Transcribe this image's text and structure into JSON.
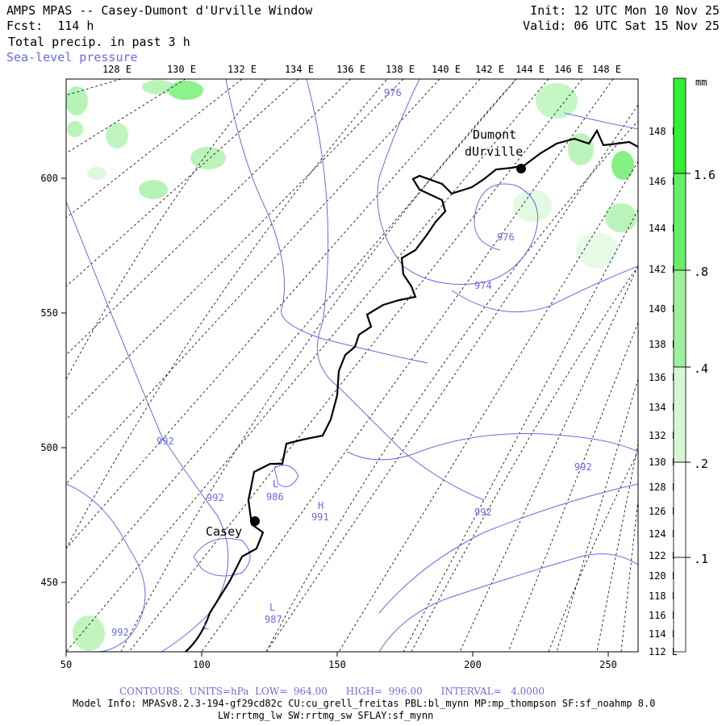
{
  "header": {
    "title": "AMPS MPAS -- Casey-Dumont d'Urville Window",
    "forecast": "Fcst:  114 h",
    "field": "Total precip. in past 3 h",
    "overlay": "Sea-level pressure",
    "init": "Init: 12 UTC Mon 10 Nov 25",
    "valid": "Valid: 06 UTC Sat 15 Nov 25"
  },
  "axes": {
    "x_ticks": [
      "50",
      "100",
      "150",
      "200",
      "250"
    ],
    "y_ticks": [
      "450",
      "500",
      "550",
      "600"
    ]
  },
  "longitudes_top": [
    "128 E",
    "130 E",
    "132 E",
    "134 E",
    "136 E",
    "138 E",
    "140 E",
    "142 E",
    "144 E",
    "146 E",
    "148 E"
  ],
  "longitudes_right": [
    "148 E",
    "146 E",
    "144 E",
    "142 E",
    "140 E",
    "138 E",
    "136 E",
    "134 E",
    "132 E",
    "130 E",
    "128 E",
    "126 E",
    "124 E",
    "122 E",
    "120 E",
    "118 E",
    "116 E",
    "114 E",
    "112 E"
  ],
  "colorbar": {
    "unit": "mm",
    "labels": [
      "1.6",
      ".8",
      ".4",
      ".2",
      ".1"
    ],
    "colors": [
      "#33ee33",
      "#66ee66",
      "#9ef09e",
      "#d6f7d6",
      "#ffffff"
    ]
  },
  "stations": [
    {
      "name": "Dumont",
      "name2": "dUrville"
    },
    {
      "name": "Casey"
    }
  ],
  "isobar_labels": [
    "976",
    "976",
    "974",
    "992",
    "992",
    "992",
    "992",
    "992",
    "986",
    "987",
    "991",
    "L",
    "L",
    "H",
    "L"
  ],
  "footer": {
    "contours": "CONTOURS:  UNITS=hPa  LOW=  964.00      HIGH=  996.00      INTERVAL=   4.0000",
    "model_info": "Model Info: MPASv8.2.3-194-gf29cd82c CU:cu_grell_freitas PBL:bl_mynn MP:mp_thompson SF:sf_noahmp 8.0",
    "model_info2": "LW:rrtmg_lw SW:rrtmg_sw SFLAY:sf_mynn"
  }
}
